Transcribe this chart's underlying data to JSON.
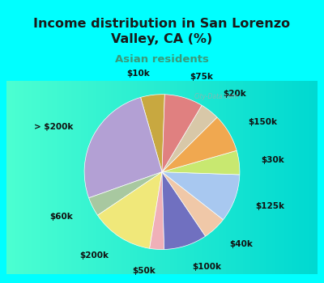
{
  "title": "Income distribution in San Lorenzo\nValley, CA (%)",
  "subtitle": "Asian residents",
  "bg_cyan": "#00ffff",
  "bg_chart_color": "#d8ede0",
  "title_color": "#1a1a1a",
  "subtitle_color": "#3a9a7a",
  "labels": [
    "$10k",
    "> $200k",
    "$60k",
    "$200k",
    "$50k",
    "$100k",
    "$40k",
    "$125k",
    "$30k",
    "$150k",
    "$20k",
    "$75k"
  ],
  "values": [
    5,
    26,
    4,
    13,
    3,
    9,
    5,
    10,
    5,
    8,
    4,
    8
  ],
  "colors": [
    "#c8a840",
    "#b3a0d4",
    "#a8c8a0",
    "#f0e87a",
    "#f0b0b8",
    "#7070c0",
    "#f0c8a8",
    "#a8c8f0",
    "#c8e870",
    "#f0a850",
    "#d8c8a8",
    "#e08080"
  ],
  "startangle": 88,
  "label_fontsize": 7.5,
  "title_fontsize": 11.5,
  "subtitle_fontsize": 9.5,
  "labeldistance": 1.28
}
